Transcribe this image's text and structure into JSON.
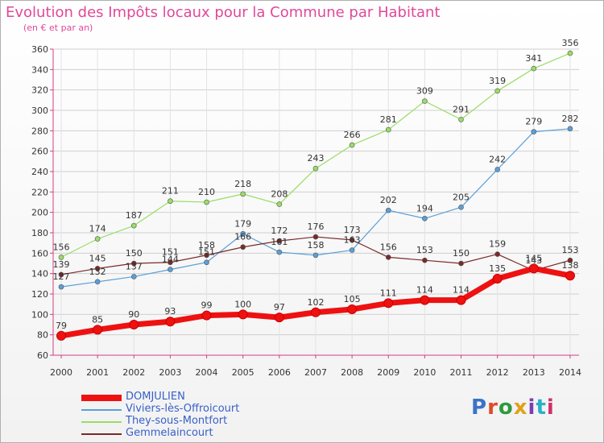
{
  "title": "Evolution des Impôts locaux pour la Commune par Habitant",
  "subtitle": "(en € et par an)",
  "brand": {
    "text": "Proxiti",
    "colors": [
      "#3b73c8",
      "#e04a2a",
      "#2f9a3c",
      "#e2a11a",
      "#7a3fb0",
      "#2bb0c8",
      "#d22f6a"
    ]
  },
  "chart_data": {
    "type": "line",
    "x": [
      "2000",
      "2001",
      "2002",
      "2003",
      "2004",
      "2005",
      "2006",
      "2007",
      "2008",
      "2009",
      "2010",
      "2011",
      "2012",
      "2013",
      "2014"
    ],
    "ylim": [
      60,
      360
    ],
    "yticks": [
      60,
      80,
      100,
      120,
      140,
      160,
      180,
      200,
      220,
      240,
      260,
      280,
      300,
      320,
      340,
      360
    ],
    "grid": true,
    "legend_position": "bottom-left",
    "series": [
      {
        "name": "DOMJULIEN",
        "color": "#ee1111",
        "width": 7,
        "values": [
          79,
          85,
          90,
          93,
          99,
          100,
          97,
          102,
          105,
          111,
          114,
          114,
          135,
          145,
          138
        ]
      },
      {
        "name": "Viviers-lès-Offroicourt",
        "color": "#5b9fd8",
        "width": 1.2,
        "values": [
          127,
          132,
          137,
          144,
          151,
          179,
          161,
          158,
          163,
          202,
          194,
          205,
          242,
          279,
          282
        ]
      },
      {
        "name": "They-sous-Montfort",
        "color": "#99dd66",
        "width": 1.2,
        "values": [
          156,
          174,
          187,
          211,
          210,
          218,
          208,
          243,
          266,
          281,
          309,
          291,
          319,
          341,
          356
        ]
      },
      {
        "name": "Gemmelaincourt",
        "color": "#7a2a2a",
        "width": 1.2,
        "values": [
          139,
          145,
          150,
          151,
          158,
          166,
          172,
          176,
          173,
          156,
          153,
          150,
          159,
          143,
          153
        ]
      }
    ]
  }
}
